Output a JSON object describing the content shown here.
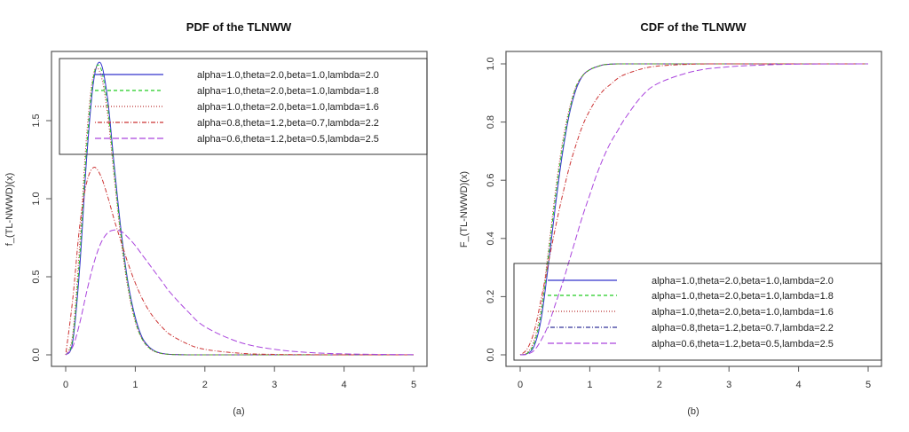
{
  "chart_data": [
    {
      "type": "line",
      "title": "PDF of the TLNWW",
      "xlabel": "(a)",
      "ylabel": "f_(TL-NWWD)(x)",
      "xlim": [
        0,
        5
      ],
      "ylim": [
        0,
        1.87
      ],
      "xticks": [
        "0",
        "1",
        "2",
        "3",
        "4",
        "5"
      ],
      "yticks": [
        "0.0",
        "0.5",
        "1.0",
        "1.5"
      ],
      "grid": false,
      "legend_position": "top",
      "x": [
        0,
        0.1,
        0.2,
        0.3,
        0.4,
        0.5,
        0.6,
        0.7,
        0.8,
        0.9,
        1.0,
        1.1,
        1.2,
        1.3,
        1.4,
        1.5,
        1.75,
        2.0,
        2.5,
        3.0,
        3.5,
        4.0,
        5.0
      ],
      "series": [
        {
          "name": "alpha=1.0,theta=2.0,beta=1.0,lambda=2.0",
          "color": "#3333cc",
          "dash": "solid",
          "values": [
            0,
            0.08,
            0.55,
            1.25,
            1.75,
            1.87,
            1.65,
            1.2,
            0.78,
            0.45,
            0.24,
            0.11,
            0.05,
            0.02,
            0.008,
            0.003,
            0,
            0,
            0,
            0,
            0,
            0,
            0
          ]
        },
        {
          "name": "alpha=1.0,theta=2.0,beta=1.0,lambda=1.8",
          "color": "#22cc22",
          "dash": "dashed",
          "values": [
            0,
            0.1,
            0.62,
            1.32,
            1.78,
            1.84,
            1.6,
            1.16,
            0.75,
            0.43,
            0.22,
            0.1,
            0.045,
            0.018,
            0.007,
            0.003,
            0,
            0,
            0,
            0,
            0,
            0,
            0
          ]
        },
        {
          "name": "alpha=1.0,theta=2.0,beta=1.0,lambda=1.6",
          "color": "#bb3333",
          "dash": "dotted",
          "values": [
            0,
            0.13,
            0.7,
            1.4,
            1.8,
            1.8,
            1.55,
            1.12,
            0.72,
            0.41,
            0.21,
            0.1,
            0.043,
            0.017,
            0.007,
            0.003,
            0,
            0,
            0,
            0,
            0,
            0,
            0
          ]
        },
        {
          "name": "alpha=0.8,theta=1.2,beta=0.7,lambda=2.2",
          "color": "#cc3333",
          "dash": "dotdash",
          "values": [
            0,
            0.35,
            0.82,
            1.1,
            1.2,
            1.15,
            1.02,
            0.86,
            0.72,
            0.58,
            0.46,
            0.36,
            0.28,
            0.22,
            0.17,
            0.13,
            0.07,
            0.035,
            0.01,
            0.003,
            0.001,
            0,
            0
          ]
        },
        {
          "name": "alpha=0.6,theta=1.2,beta=0.5,lambda=2.5",
          "color": "#aa44dd",
          "dash": "longdash",
          "values": [
            0,
            0.05,
            0.2,
            0.4,
            0.58,
            0.71,
            0.78,
            0.8,
            0.79,
            0.75,
            0.7,
            0.64,
            0.58,
            0.52,
            0.46,
            0.4,
            0.28,
            0.18,
            0.08,
            0.035,
            0.015,
            0.006,
            0.001
          ]
        }
      ]
    },
    {
      "type": "line",
      "title": "CDF of the TLNWW",
      "xlabel": "(b)",
      "ylabel": "F_(TL-NWWD)(x)",
      "xlim": [
        0,
        5
      ],
      "ylim": [
        0,
        1.0
      ],
      "xticks": [
        "0",
        "1",
        "2",
        "3",
        "4",
        "5"
      ],
      "yticks": [
        "0.0",
        "0.2",
        "0.4",
        "0.6",
        "0.8",
        "1.0"
      ],
      "grid": false,
      "legend_position": "bottom",
      "x": [
        0,
        0.1,
        0.2,
        0.3,
        0.4,
        0.5,
        0.6,
        0.7,
        0.8,
        0.9,
        1.0,
        1.1,
        1.2,
        1.3,
        1.4,
        1.5,
        1.75,
        2.0,
        2.5,
        3.0,
        3.5,
        4.0,
        5.0
      ],
      "series": [
        {
          "name": "alpha=1.0,theta=2.0,beta=1.0,lambda=2.0",
          "color": "#3333cc",
          "dash": "solid",
          "values": [
            0,
            0.004,
            0.03,
            0.12,
            0.3,
            0.5,
            0.68,
            0.82,
            0.91,
            0.96,
            0.98,
            0.99,
            0.997,
            0.999,
            1,
            1,
            1,
            1,
            1,
            1,
            1,
            1,
            1
          ]
        },
        {
          "name": "alpha=1.0,theta=2.0,beta=1.0,lambda=1.8",
          "color": "#22cc22",
          "dash": "dashed",
          "values": [
            0,
            0.005,
            0.04,
            0.14,
            0.33,
            0.53,
            0.7,
            0.83,
            0.92,
            0.96,
            0.98,
            0.99,
            0.997,
            0.999,
            1,
            1,
            1,
            1,
            1,
            1,
            1,
            1,
            1
          ]
        },
        {
          "name": "alpha=1.0,theta=2.0,beta=1.0,lambda=1.6",
          "color": "#bb3333",
          "dash": "dotted",
          "values": [
            0,
            0.007,
            0.05,
            0.16,
            0.35,
            0.55,
            0.72,
            0.84,
            0.92,
            0.96,
            0.98,
            0.99,
            0.997,
            0.999,
            1,
            1,
            1,
            1,
            1,
            1,
            1,
            1,
            1
          ]
        },
        {
          "name": "alpha=0.8,theta=1.2,beta=0.7,lambda=2.2",
          "color": "#cc3333",
          "dash": "dotdash",
          "values": [
            0,
            0.02,
            0.08,
            0.19,
            0.31,
            0.43,
            0.54,
            0.64,
            0.72,
            0.79,
            0.84,
            0.88,
            0.91,
            0.93,
            0.95,
            0.963,
            0.983,
            0.993,
            0.999,
            1,
            1,
            1,
            1
          ]
        },
        {
          "name": "alpha=0.6,theta=1.2,beta=0.5,lambda=2.5",
          "color": "#aa44dd",
          "dash": "longdash",
          "values": [
            0,
            0.002,
            0.015,
            0.05,
            0.1,
            0.17,
            0.24,
            0.32,
            0.4,
            0.48,
            0.55,
            0.62,
            0.68,
            0.73,
            0.77,
            0.81,
            0.89,
            0.935,
            0.975,
            0.99,
            0.996,
            0.999,
            1
          ]
        }
      ]
    }
  ],
  "cdf_legend_dash_override": {
    "3": {
      "color": "#333399"
    }
  }
}
